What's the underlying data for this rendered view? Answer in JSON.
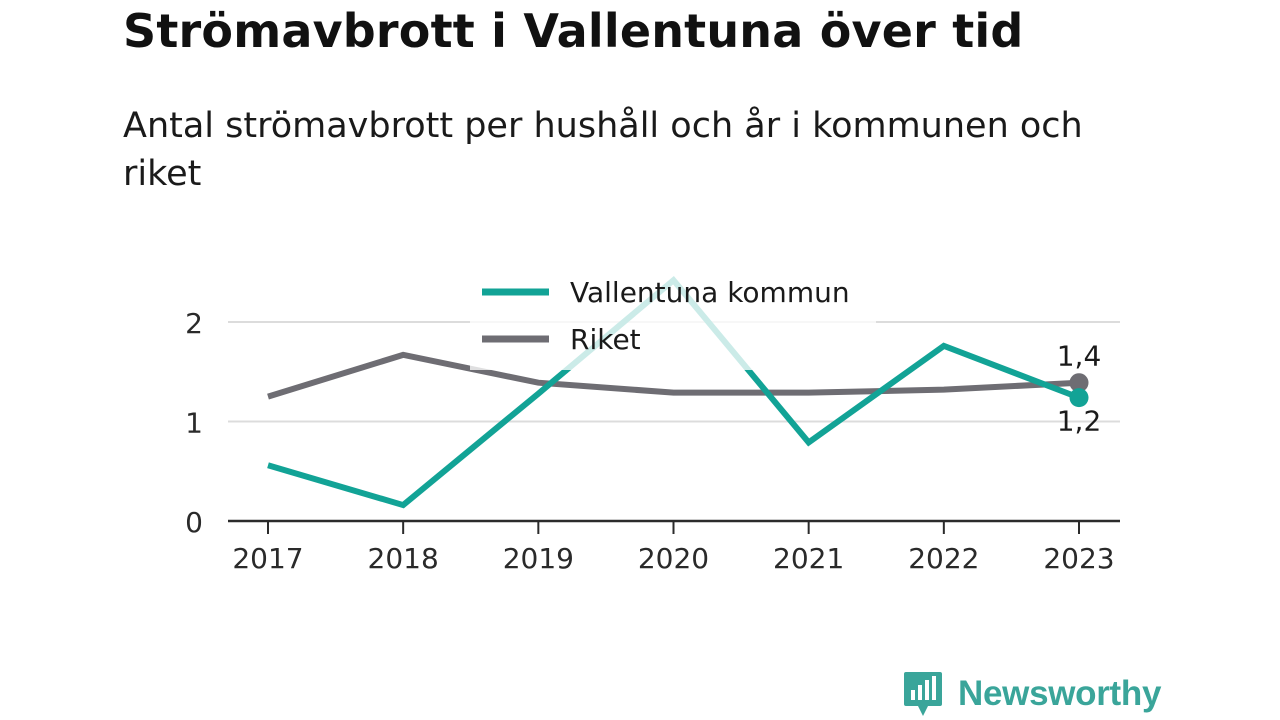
{
  "header": {
    "title": "Strömavbrott i Vallentuna över tid",
    "subtitle": "Antal strömavbrott per hushåll och år i kommunen och riket"
  },
  "chart_data": {
    "type": "line",
    "x": [
      "2017",
      "2018",
      "2019",
      "2020",
      "2021",
      "2022",
      "2023"
    ],
    "yticks": [
      "0",
      "1",
      "2"
    ],
    "ylim": [
      0,
      2.4
    ],
    "grid": true,
    "legend_position": "top-center",
    "series": [
      {
        "name": "Vallentuna kommun",
        "color": "#12a396",
        "values": [
          0.56,
          0.16,
          1.28,
          2.42,
          0.79,
          1.76,
          1.24
        ],
        "end_label": "1,2"
      },
      {
        "name": "Riket",
        "color": "#6e6d73",
        "values": [
          1.25,
          1.67,
          1.39,
          1.29,
          1.29,
          1.32,
          1.39
        ],
        "end_label": "1,4"
      }
    ]
  },
  "branding": {
    "logo_text": "Newsworthy",
    "logo_color": "#3aa59a"
  }
}
